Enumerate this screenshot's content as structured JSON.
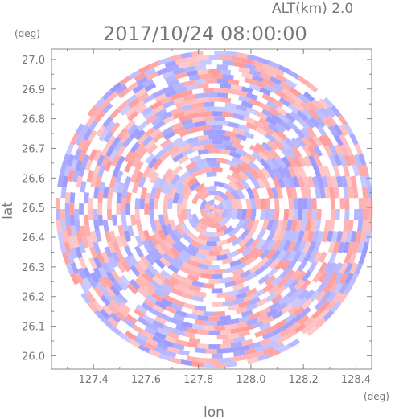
{
  "chart_data": {
    "type": "heatmap",
    "title": "2017/10/24 08:00:00",
    "subtitle": "ALT(km) 2.0",
    "xlabel": "lon",
    "ylabel": "lat",
    "x_unit": "(deg)",
    "y_unit": "(deg)",
    "xlim": [
      127.24,
      128.46
    ],
    "ylim": [
      25.955,
      27.035
    ],
    "x_ticks": [
      127.4,
      127.6,
      127.8,
      128.0,
      128.2,
      128.4
    ],
    "x_tick_labels": [
      "127.4",
      "127.6",
      "127.8",
      "128.0",
      "128.2",
      "128.4"
    ],
    "y_ticks": [
      26.0,
      26.1,
      26.2,
      26.3,
      26.4,
      26.5,
      26.6,
      26.7,
      26.8,
      26.9,
      27.0
    ],
    "y_tick_labels": [
      "26.0",
      "26.1",
      "26.2",
      "26.3",
      "26.4",
      "26.5",
      "26.6",
      "26.7",
      "26.8",
      "26.9",
      "27.0"
    ],
    "radar_center": {
      "lon": 127.86,
      "lat": 26.495
    },
    "radar_radius_lat_deg": 0.535,
    "colors": {
      "positive": "#ff8f8f",
      "negative": "#8f8fff",
      "zero": "#ffffff",
      "axis": "#777777"
    },
    "grid": false,
    "legend": "none"
  }
}
